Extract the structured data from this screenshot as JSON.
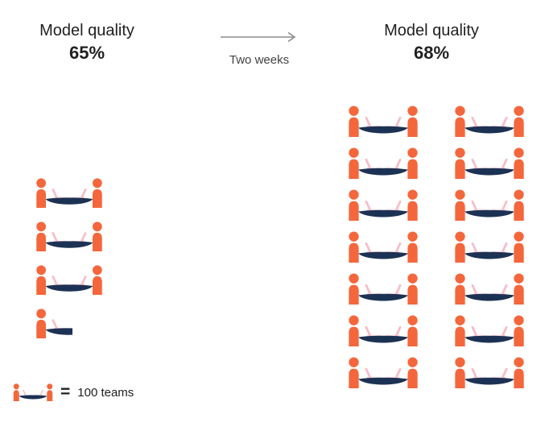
{
  "chart_data": {
    "type": "pictogram",
    "unit_per_icon": 100,
    "before": {
      "label": "Model quality",
      "value": "65%",
      "icons_full": 3,
      "icons_partial": 1,
      "teams_estimate": 350
    },
    "after": {
      "label": "Model quality",
      "value": "68%",
      "icons_full": 14,
      "icons_partial": 0,
      "teams_estimate": 1400
    },
    "transition": {
      "label": "Two weeks"
    },
    "legend": {
      "equals": "=",
      "label": "100 teams"
    },
    "icon_name": "team-at-table-with-laptops-icon",
    "colors": {
      "person": "#F4673C",
      "table": "#1C3254",
      "laptop": "#F7BCC8",
      "arrow": "#8C8C8C",
      "text": "#212121"
    }
  }
}
